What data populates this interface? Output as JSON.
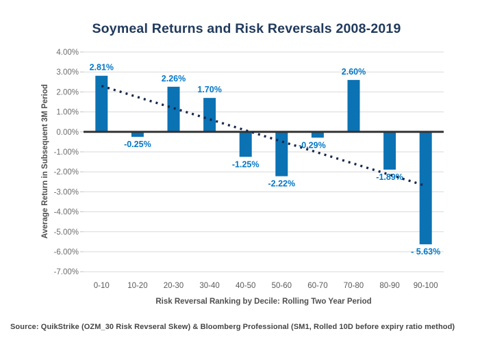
{
  "title": "Soymeal Returns and Risk Reversals 2008-2019",
  "source_note": "Source: QuikStrike (OZM_30 Risk Revseral Skew) & Bloomberg Professional (SM1, Rolled 10D before expiry ratio method)",
  "chart_data": {
    "type": "bar",
    "title": "Soymeal Returns and Risk Reversals 2008-2019",
    "categories": [
      "0-10",
      "10-20",
      "20-30",
      "30-40",
      "40-50",
      "50-60",
      "60-70",
      "70-80",
      "80-90",
      "90-100"
    ],
    "values": [
      2.81,
      -0.25,
      2.26,
      1.7,
      -1.25,
      -2.22,
      -0.29,
      2.6,
      -1.89,
      -5.63
    ],
    "bar_labels": [
      "2.81%",
      "-0.25%",
      "2.26%",
      "1.70%",
      "-1.25%",
      "-2.22%",
      "-0.29%",
      "2.60%",
      "-1.89%",
      "- 5.63%"
    ],
    "bar_label_dx": [
      0,
      0,
      0,
      0,
      0,
      0,
      -8,
      0,
      0,
      0
    ],
    "xlabel": "Risk Reversal Ranking by Decile: Rolling Two Year Period",
    "ylabel": "Average Return in Subsequent 3M Period",
    "ylim": [
      -7,
      4
    ],
    "ytick_step": 1,
    "ytick_labels": [
      "4.00%",
      "3.00%",
      "2.00%",
      "1.00%",
      "0.00%",
      "-1.00%",
      "-2.00%",
      "-3.00%",
      "-4.00%",
      "-5.00%",
      "-6.00%",
      "-7.00%"
    ],
    "grid": true,
    "legend": "none",
    "trendline": {
      "style": "dotted",
      "start_value": 2.3,
      "end_value": -2.7
    },
    "colors": {
      "bar": "#0b72b4",
      "bar_label": "#0077c6",
      "trendline": "#18284a",
      "title": "#203a5c",
      "gridline": "#d9d9d9",
      "tick_mark": "#c4c4c4",
      "zero_line": "#333333",
      "ytick_text": "#6e6e6e",
      "xtick_text": "#595959",
      "axis_title": "#4f4f4f",
      "source_text": "#444444"
    }
  }
}
